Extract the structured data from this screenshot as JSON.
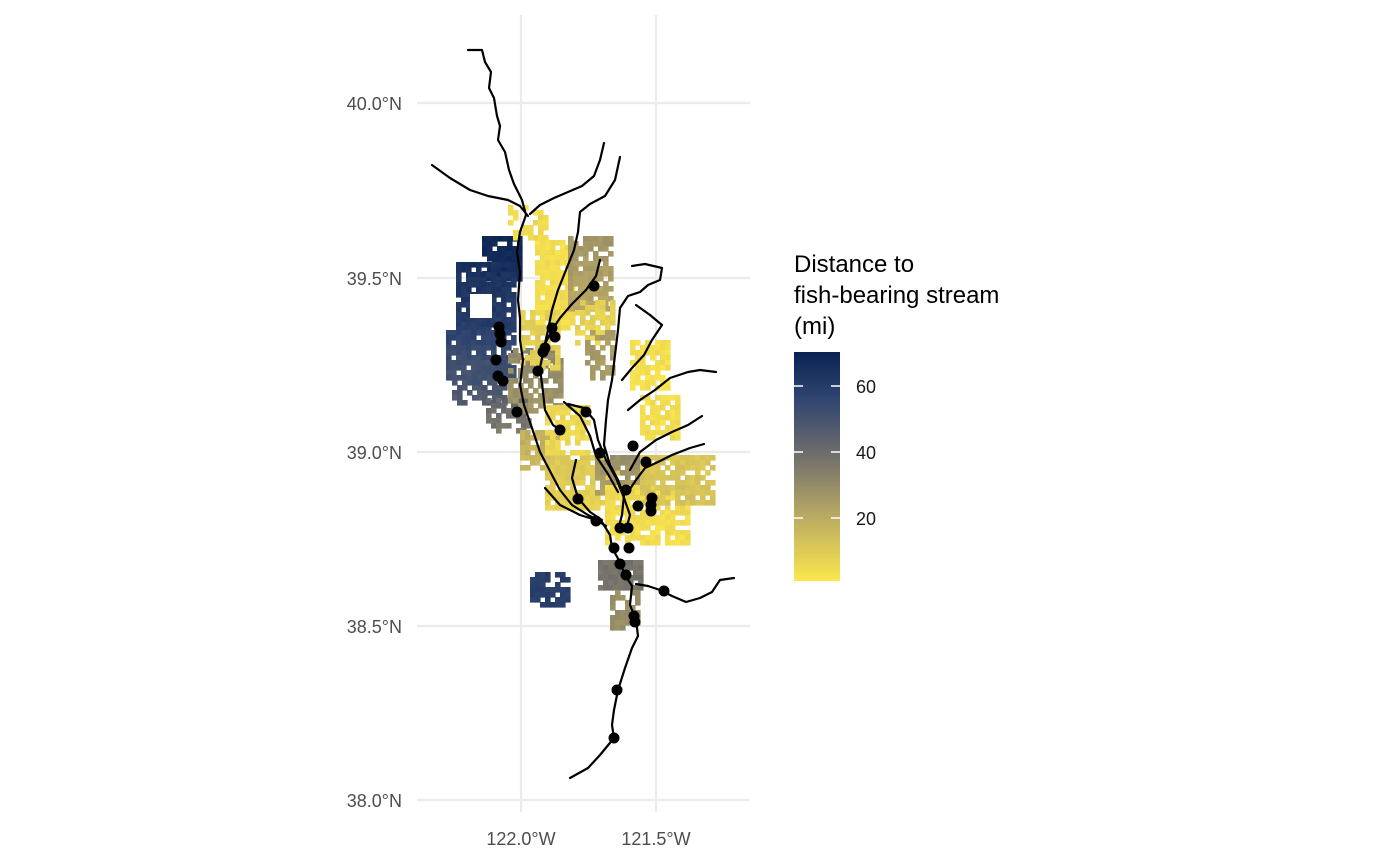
{
  "map": {
    "y_axis_labels": [
      "40.0°N",
      "39.5°N",
      "39.0°N",
      "38.5°N",
      "38.0°N"
    ],
    "x_axis_labels": [
      "122.0°W",
      "121.5°W"
    ],
    "gridlines": true
  },
  "legend": {
    "title_lines": [
      "Distance to",
      "fish-bearing stream",
      "(mi)"
    ],
    "tick_labels": [
      "60",
      "40",
      "20"
    ],
    "colors": [
      "#fde74c",
      "#6f6e6c",
      "#0a2352"
    ],
    "range": [
      0,
      70
    ]
  },
  "colors": {
    "river": "#000000",
    "point": "#000000",
    "grid": "#ebebeb"
  }
}
